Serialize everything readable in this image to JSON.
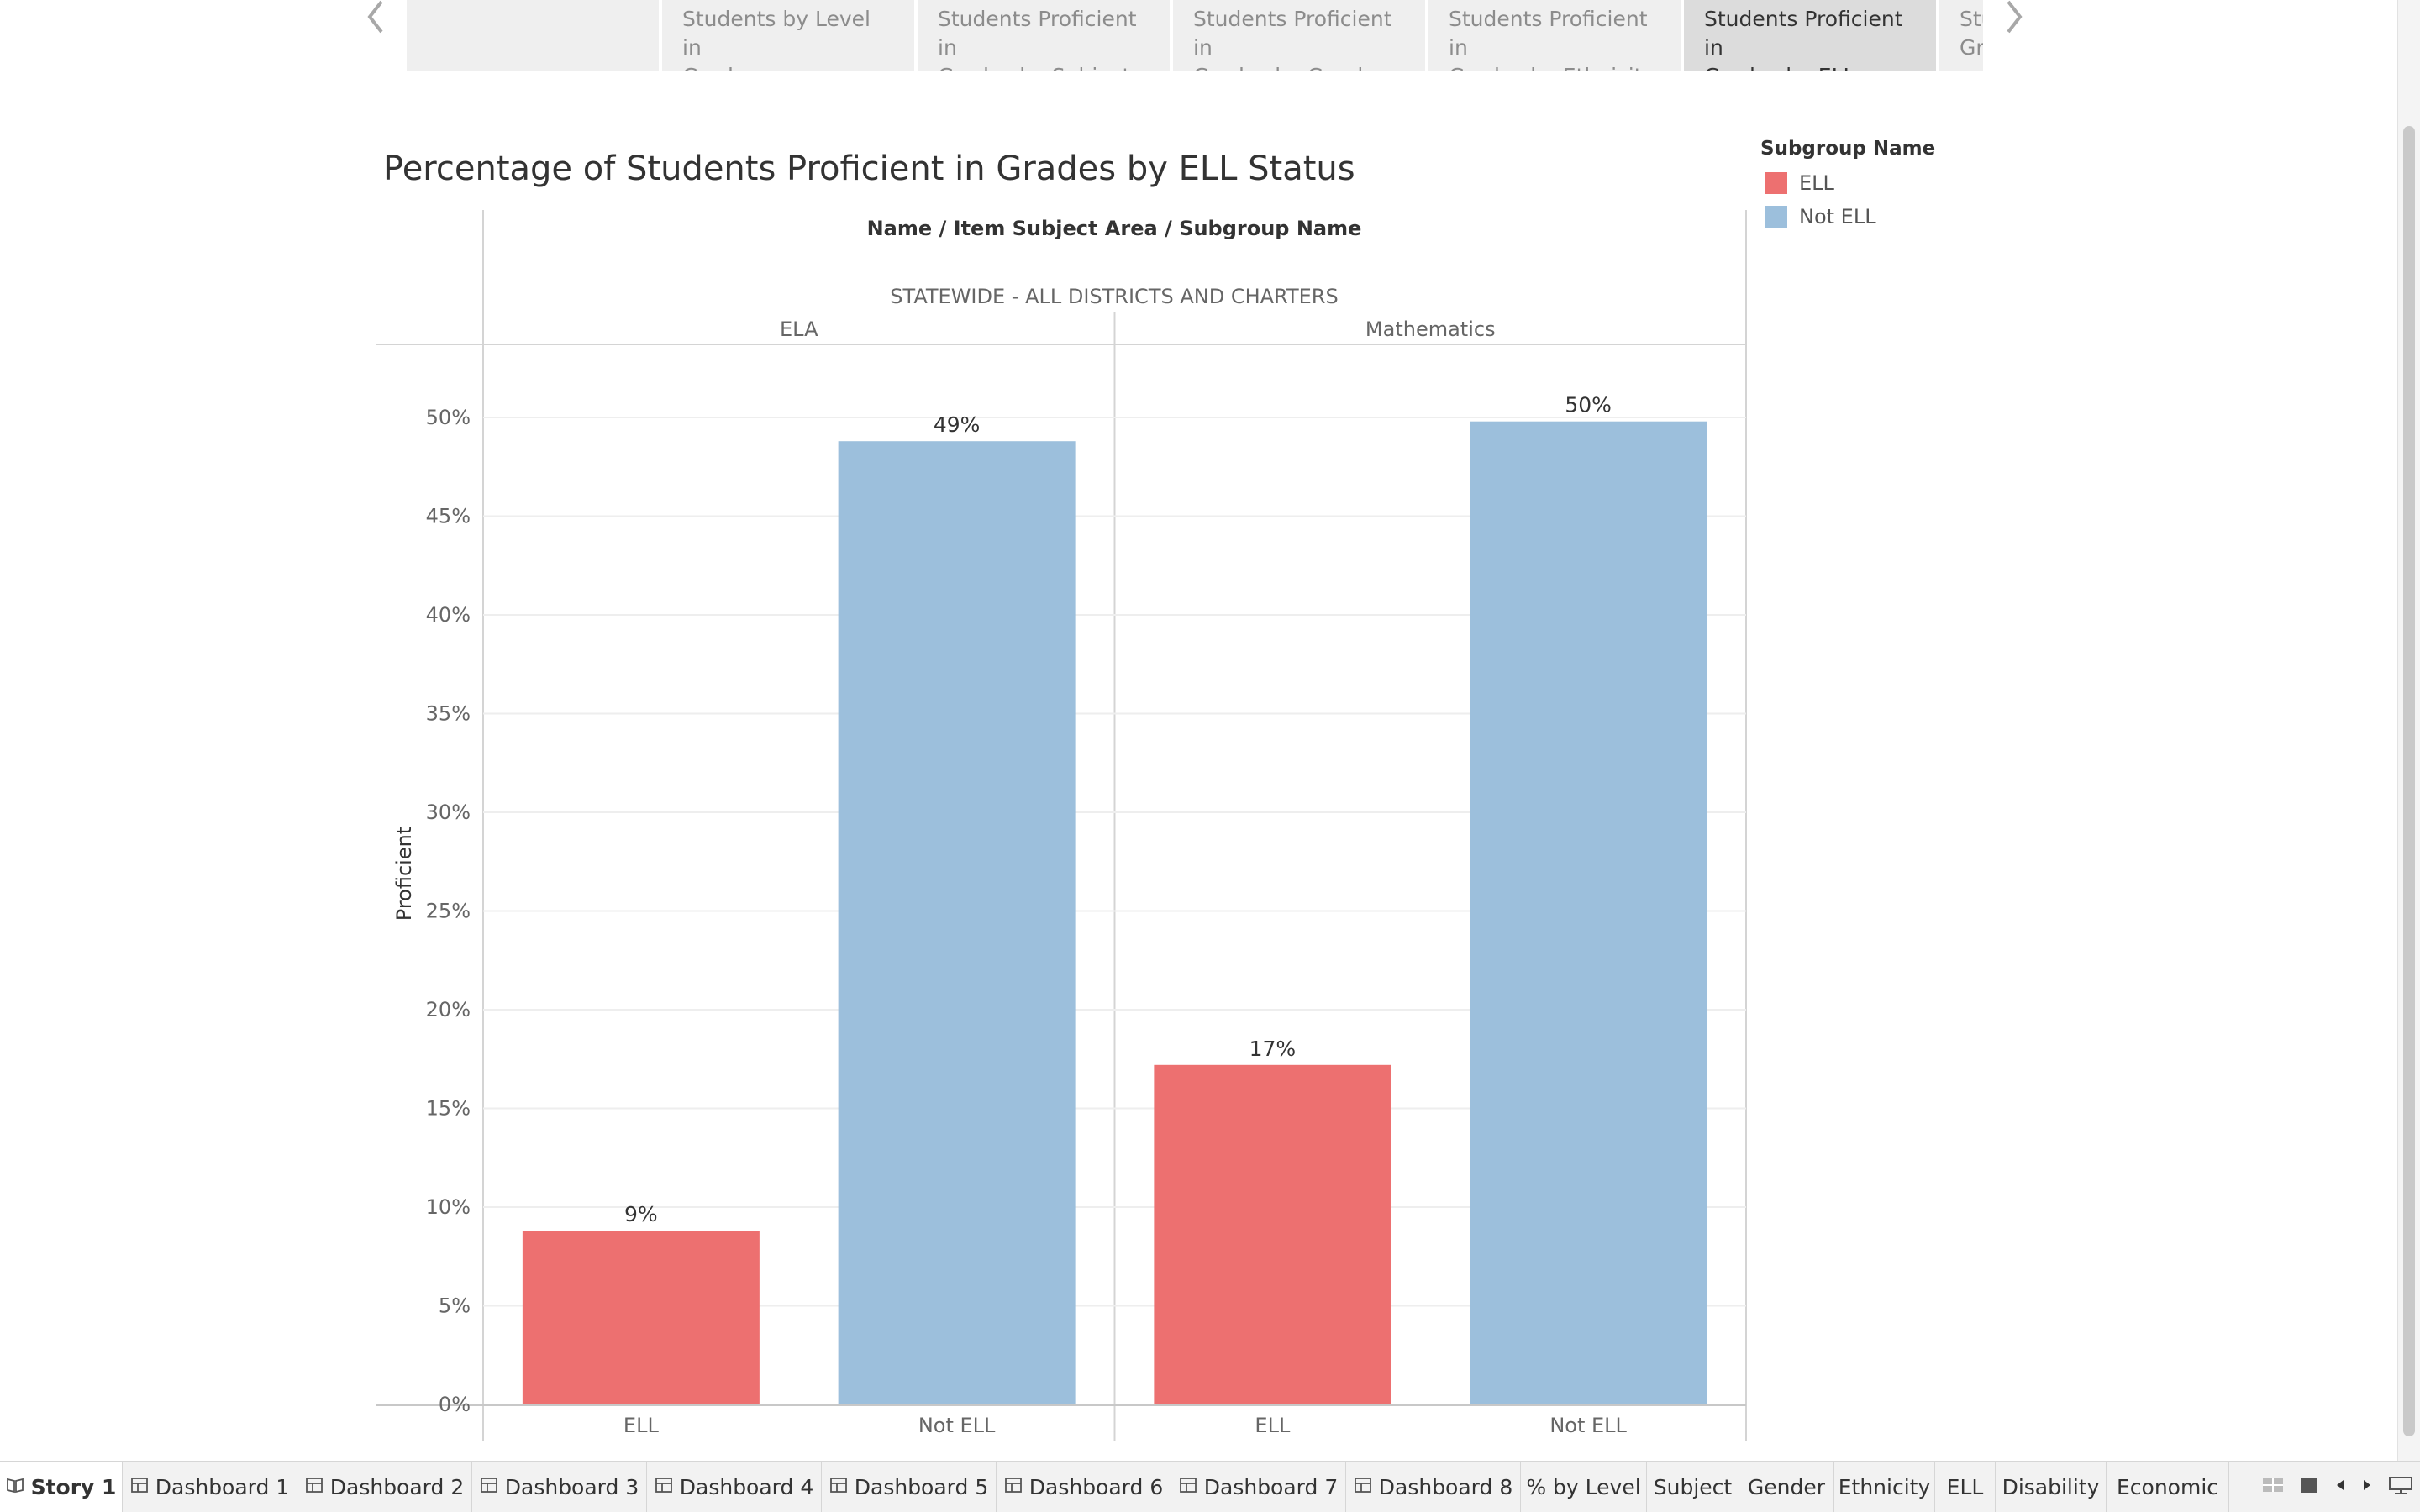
{
  "story_nav": {
    "points": [
      {
        "lines": [
          "",
          ""
        ],
        "active": false
      },
      {
        "lines": [
          "Students by Level in",
          "Grades"
        ],
        "active": false
      },
      {
        "lines": [
          "Students Proficient in",
          "Grades by Subject"
        ],
        "active": false
      },
      {
        "lines": [
          "Students Proficient in",
          "Grades by Gender"
        ],
        "active": false
      },
      {
        "lines": [
          "Students Proficient in",
          "Grades by Ethnicity"
        ],
        "active": false
      },
      {
        "lines": [
          "Students Proficient in",
          "Grades by ELL Status"
        ],
        "active": true
      },
      {
        "lines": [
          "Stu",
          "Gr"
        ],
        "active": false
      }
    ]
  },
  "chart_data": {
    "type": "bar",
    "title": "Percentage of Students Proficient in Grades by ELL Status",
    "header_path": [
      "Name",
      "Item Subject Area",
      "Subgroup Name"
    ],
    "header_separator": "/",
    "group_label": "STATEWIDE - ALL DISTRICTS AND CHARTERS",
    "ylabel": "Proficient",
    "ylim": [
      0,
      0.53
    ],
    "yticks": [
      0,
      0.05,
      0.1,
      0.15,
      0.2,
      0.25,
      0.3,
      0.35,
      0.4,
      0.45,
      0.5
    ],
    "ytick_labels": [
      "0%",
      "5%",
      "10%",
      "15%",
      "20%",
      "25%",
      "30%",
      "35%",
      "40%",
      "45%",
      "50%"
    ],
    "grid": true,
    "panels": [
      {
        "name": "ELA",
        "categories": [
          "ELL",
          "Not ELL"
        ],
        "values": [
          0.088,
          0.488
        ],
        "labels": [
          "9%",
          "49%"
        ]
      },
      {
        "name": "Mathematics",
        "categories": [
          "ELL",
          "Not ELL"
        ],
        "values": [
          0.172,
          0.498
        ],
        "labels": [
          "17%",
          "50%"
        ]
      }
    ],
    "legend": {
      "title": "Subgroup Name",
      "placement": "right",
      "items": [
        {
          "name": "ELL",
          "color": "#ED7070"
        },
        {
          "name": "Not ELL",
          "color": "#9CBFDC"
        }
      ]
    }
  },
  "tabs": [
    {
      "label": "Story 1",
      "icon": "story-icon",
      "active": true
    },
    {
      "label": "Dashboard 1",
      "icon": "dashboard-icon"
    },
    {
      "label": "Dashboard 2",
      "icon": "dashboard-icon"
    },
    {
      "label": "Dashboard 3",
      "icon": "dashboard-icon"
    },
    {
      "label": "Dashboard 4",
      "icon": "dashboard-icon"
    },
    {
      "label": "Dashboard 5",
      "icon": "dashboard-icon"
    },
    {
      "label": "Dashboard 6",
      "icon": "dashboard-icon"
    },
    {
      "label": "Dashboard 7",
      "icon": "dashboard-icon"
    },
    {
      "label": "Dashboard 8",
      "icon": "dashboard-icon"
    },
    {
      "label": "% by Level"
    },
    {
      "label": "Subject"
    },
    {
      "label": "Gender"
    },
    {
      "label": "Ethnicity"
    },
    {
      "label": "ELL"
    },
    {
      "label": "Disability"
    },
    {
      "label": "Economic"
    }
  ],
  "tab_controls": [
    "sheet-sorter-icon",
    "filmstrip-icon",
    "previous-tab-icon",
    "next-tab-icon",
    "presentation-icon"
  ]
}
